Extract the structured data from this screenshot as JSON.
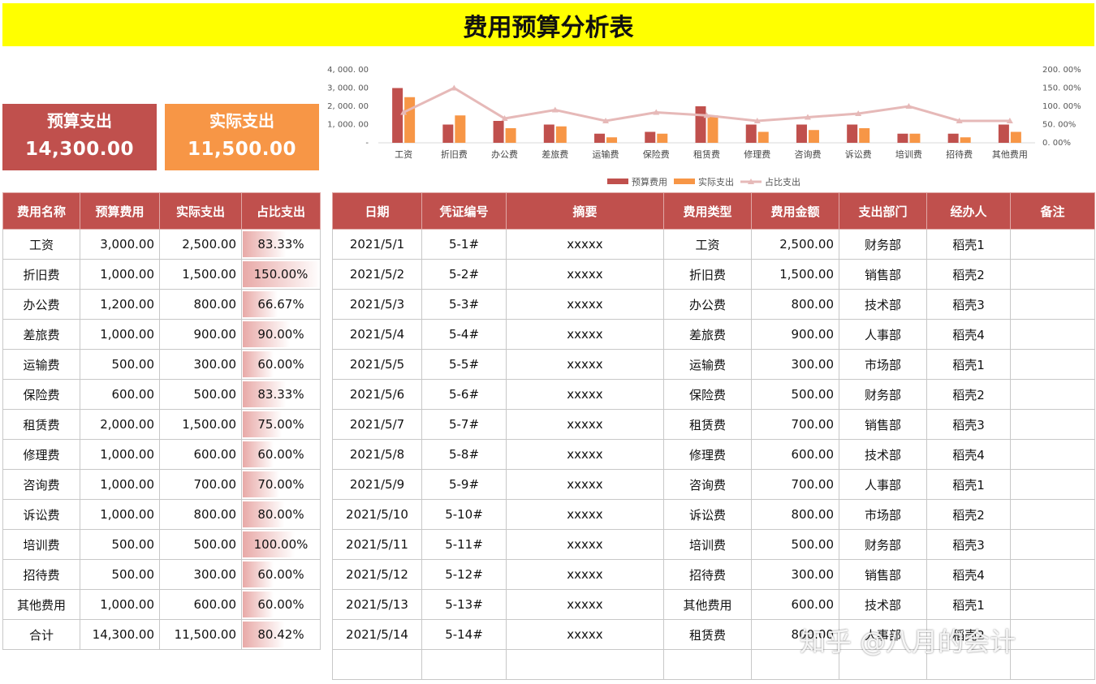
{
  "title": "费用预算分析表",
  "cards": {
    "budget": {
      "label": "预算支出",
      "value": "14,300.00"
    },
    "actual": {
      "label": "实际支出",
      "value": "11,500.00"
    }
  },
  "chart_data": {
    "type": "bar",
    "categories": [
      "工资",
      "折旧费",
      "办公费",
      "差旅费",
      "运输费",
      "保险费",
      "租赁费",
      "修理费",
      "咨询费",
      "诉讼费",
      "培训费",
      "招待费",
      "其他费用"
    ],
    "series": [
      {
        "name": "预算费用",
        "type": "bar",
        "axis": "left",
        "color": "#c0504d",
        "values": [
          3000,
          1000,
          1200,
          1000,
          500,
          600,
          2000,
          1000,
          1000,
          1000,
          500,
          500,
          1000
        ]
      },
      {
        "name": "实际支出",
        "type": "bar",
        "axis": "left",
        "color": "#f79646",
        "values": [
          2500,
          1500,
          800,
          900,
          300,
          500,
          1500,
          600,
          700,
          800,
          500,
          300,
          600
        ]
      },
      {
        "name": "占比支出",
        "type": "line",
        "axis": "right",
        "color": "#e6b9b8",
        "values": [
          83.33,
          150.0,
          66.67,
          90.0,
          60.0,
          83.33,
          75.0,
          60.0,
          70.0,
          80.0,
          100.0,
          60.0,
          60.0
        ]
      }
    ],
    "ylim": [
      0,
      4000
    ],
    "y_ticks": [
      "-",
      "1, 000. 00",
      "2, 000. 00",
      "3, 000. 00",
      "4, 000. 00"
    ],
    "y2lim": [
      0,
      200
    ],
    "y2_ticks": [
      "0. 00%",
      "50. 00%",
      "100. 00%",
      "150. 00%",
      "200. 00%"
    ],
    "legend_position": "bottom",
    "grid": false
  },
  "summary": {
    "headers": [
      "费用名称",
      "预算费用",
      "实际支出",
      "占比支出"
    ],
    "rows": [
      {
        "name": "工资",
        "budget": "3,000.00",
        "actual": "2,500.00",
        "ratio": "83.33%",
        "ratio_value": 0.8333
      },
      {
        "name": "折旧费",
        "budget": "1,000.00",
        "actual": "1,500.00",
        "ratio": "150.00%",
        "ratio_value": 1.5
      },
      {
        "name": "办公费",
        "budget": "1,200.00",
        "actual": "800.00",
        "ratio": "66.67%",
        "ratio_value": 0.6667
      },
      {
        "name": "差旅费",
        "budget": "1,000.00",
        "actual": "900.00",
        "ratio": "90.00%",
        "ratio_value": 0.9
      },
      {
        "name": "运输费",
        "budget": "500.00",
        "actual": "300.00",
        "ratio": "60.00%",
        "ratio_value": 0.6
      },
      {
        "name": "保险费",
        "budget": "600.00",
        "actual": "500.00",
        "ratio": "83.33%",
        "ratio_value": 0.8333
      },
      {
        "name": "租赁费",
        "budget": "2,000.00",
        "actual": "1,500.00",
        "ratio": "75.00%",
        "ratio_value": 0.75
      },
      {
        "name": "修理费",
        "budget": "1,000.00",
        "actual": "600.00",
        "ratio": "60.00%",
        "ratio_value": 0.6
      },
      {
        "name": "咨询费",
        "budget": "1,000.00",
        "actual": "700.00",
        "ratio": "70.00%",
        "ratio_value": 0.7
      },
      {
        "name": "诉讼费",
        "budget": "1,000.00",
        "actual": "800.00",
        "ratio": "80.00%",
        "ratio_value": 0.8
      },
      {
        "name": "培训费",
        "budget": "500.00",
        "actual": "500.00",
        "ratio": "100.00%",
        "ratio_value": 1.0
      },
      {
        "name": "招待费",
        "budget": "500.00",
        "actual": "300.00",
        "ratio": "60.00%",
        "ratio_value": 0.6
      },
      {
        "name": "其他费用",
        "budget": "1,000.00",
        "actual": "600.00",
        "ratio": "60.00%",
        "ratio_value": 0.6
      },
      {
        "name": "合计",
        "budget": "14,300.00",
        "actual": "11,500.00",
        "ratio": "80.42%",
        "ratio_value": 0.8042
      }
    ]
  },
  "ledger": {
    "headers": [
      "日期",
      "凭证编号",
      "摘要",
      "费用类型",
      "费用金额",
      "支出部门",
      "经办人",
      "备注"
    ],
    "rows": [
      {
        "date": "2021/5/1",
        "voucher": "5-1#",
        "summary": "xxxxx",
        "type": "工资",
        "amount": "2,500.00",
        "dept": "财务部",
        "handler": "稻壳1",
        "note": ""
      },
      {
        "date": "2021/5/2",
        "voucher": "5-2#",
        "summary": "xxxxx",
        "type": "折旧费",
        "amount": "1,500.00",
        "dept": "销售部",
        "handler": "稻壳2",
        "note": ""
      },
      {
        "date": "2021/5/3",
        "voucher": "5-3#",
        "summary": "xxxxx",
        "type": "办公费",
        "amount": "800.00",
        "dept": "技术部",
        "handler": "稻壳3",
        "note": ""
      },
      {
        "date": "2021/5/4",
        "voucher": "5-4#",
        "summary": "xxxxx",
        "type": "差旅费",
        "amount": "900.00",
        "dept": "人事部",
        "handler": "稻壳4",
        "note": ""
      },
      {
        "date": "2021/5/5",
        "voucher": "5-5#",
        "summary": "xxxxx",
        "type": "运输费",
        "amount": "300.00",
        "dept": "市场部",
        "handler": "稻壳1",
        "note": ""
      },
      {
        "date": "2021/5/6",
        "voucher": "5-6#",
        "summary": "xxxxx",
        "type": "保险费",
        "amount": "500.00",
        "dept": "财务部",
        "handler": "稻壳2",
        "note": ""
      },
      {
        "date": "2021/5/7",
        "voucher": "5-7#",
        "summary": "xxxxx",
        "type": "租赁费",
        "amount": "700.00",
        "dept": "销售部",
        "handler": "稻壳3",
        "note": ""
      },
      {
        "date": "2021/5/8",
        "voucher": "5-8#",
        "summary": "xxxxx",
        "type": "修理费",
        "amount": "600.00",
        "dept": "技术部",
        "handler": "稻壳4",
        "note": ""
      },
      {
        "date": "2021/5/9",
        "voucher": "5-9#",
        "summary": "xxxxx",
        "type": "咨询费",
        "amount": "700.00",
        "dept": "人事部",
        "handler": "稻壳1",
        "note": ""
      },
      {
        "date": "2021/5/10",
        "voucher": "5-10#",
        "summary": "xxxxx",
        "type": "诉讼费",
        "amount": "800.00",
        "dept": "市场部",
        "handler": "稻壳2",
        "note": ""
      },
      {
        "date": "2021/5/11",
        "voucher": "5-11#",
        "summary": "xxxxx",
        "type": "培训费",
        "amount": "500.00",
        "dept": "财务部",
        "handler": "稻壳3",
        "note": ""
      },
      {
        "date": "2021/5/12",
        "voucher": "5-12#",
        "summary": "xxxxx",
        "type": "招待费",
        "amount": "300.00",
        "dept": "销售部",
        "handler": "稻壳4",
        "note": ""
      },
      {
        "date": "2021/5/13",
        "voucher": "5-13#",
        "summary": "xxxxx",
        "type": "其他费用",
        "amount": "600.00",
        "dept": "技术部",
        "handler": "稻壳1",
        "note": ""
      },
      {
        "date": "2021/5/14",
        "voucher": "5-14#",
        "summary": "xxxxx",
        "type": "租赁费",
        "amount": "800.00",
        "dept": "人事部",
        "handler": "稻壳2",
        "note": ""
      },
      {
        "date": "",
        "voucher": "",
        "summary": "",
        "type": "",
        "amount": "",
        "dept": "",
        "handler": "",
        "note": ""
      }
    ]
  },
  "watermark": "知乎 @八月的会计"
}
